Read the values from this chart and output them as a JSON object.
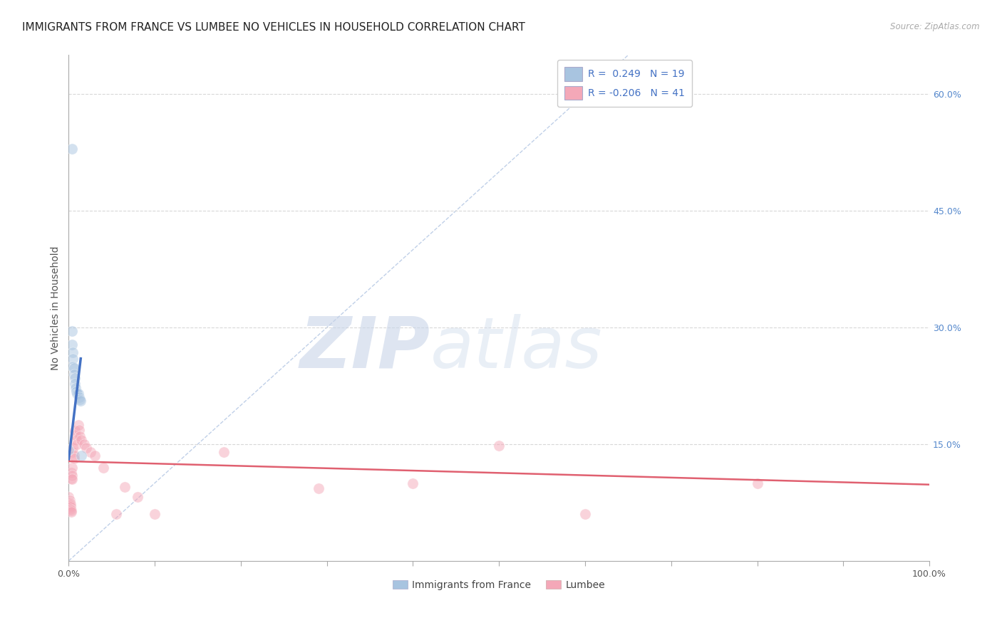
{
  "title": "IMMIGRANTS FROM FRANCE VS LUMBEE NO VEHICLES IN HOUSEHOLD CORRELATION CHART",
  "source": "Source: ZipAtlas.com",
  "ylabel": "No Vehicles in Household",
  "xlim": [
    0.0,
    1.0
  ],
  "ylim": [
    0.0,
    0.65
  ],
  "xtick_positions": [
    0.0,
    0.1,
    0.2,
    0.3,
    0.4,
    0.5,
    0.6,
    0.7,
    0.8,
    0.9,
    1.0
  ],
  "xtick_labels": [
    "0.0%",
    "",
    "",
    "",
    "",
    "",
    "",
    "",
    "",
    "",
    "100.0%"
  ],
  "ytick_positions": [
    0.15,
    0.3,
    0.45,
    0.6
  ],
  "ytick_labels": [
    "15.0%",
    "30.0%",
    "45.0%",
    "60.0%"
  ],
  "watermark_zip": "ZIP",
  "watermark_atlas": "atlas",
  "legend_entries": [
    {
      "label": "R =  0.249   N = 19",
      "color": "#a8c4e0"
    },
    {
      "label": "R = -0.206   N = 41",
      "color": "#f4a8b8"
    }
  ],
  "legend_bottom_labels": [
    "Immigrants from France",
    "Lumbee"
  ],
  "france_scatter": [
    [
      0.004,
      0.53
    ],
    [
      0.004,
      0.295
    ],
    [
      0.004,
      0.278
    ],
    [
      0.005,
      0.268
    ],
    [
      0.005,
      0.26
    ],
    [
      0.005,
      0.25
    ],
    [
      0.006,
      0.248
    ],
    [
      0.006,
      0.24
    ],
    [
      0.007,
      0.235
    ],
    [
      0.007,
      0.228
    ],
    [
      0.008,
      0.222
    ],
    [
      0.009,
      0.218
    ],
    [
      0.01,
      0.215
    ],
    [
      0.011,
      0.215
    ],
    [
      0.012,
      0.21
    ],
    [
      0.013,
      0.208
    ],
    [
      0.014,
      0.206
    ],
    [
      0.015,
      0.135
    ],
    [
      0.0,
      0.143
    ]
  ],
  "lumbee_scatter": [
    [
      0.0,
      0.082
    ],
    [
      0.001,
      0.078
    ],
    [
      0.001,
      0.075
    ],
    [
      0.002,
      0.073
    ],
    [
      0.002,
      0.071
    ],
    [
      0.002,
      0.069
    ],
    [
      0.002,
      0.067
    ],
    [
      0.003,
      0.065
    ],
    [
      0.003,
      0.063
    ],
    [
      0.003,
      0.106
    ],
    [
      0.003,
      0.113
    ],
    [
      0.004,
      0.12
    ],
    [
      0.004,
      0.11
    ],
    [
      0.004,
      0.105
    ],
    [
      0.005,
      0.145
    ],
    [
      0.005,
      0.14
    ],
    [
      0.006,
      0.135
    ],
    [
      0.006,
      0.132
    ],
    [
      0.007,
      0.167
    ],
    [
      0.008,
      0.162
    ],
    [
      0.009,
      0.155
    ],
    [
      0.01,
      0.15
    ],
    [
      0.011,
      0.175
    ],
    [
      0.012,
      0.168
    ],
    [
      0.013,
      0.16
    ],
    [
      0.015,
      0.155
    ],
    [
      0.018,
      0.15
    ],
    [
      0.02,
      0.145
    ],
    [
      0.025,
      0.14
    ],
    [
      0.03,
      0.135
    ],
    [
      0.04,
      0.12
    ],
    [
      0.055,
      0.06
    ],
    [
      0.065,
      0.095
    ],
    [
      0.08,
      0.082
    ],
    [
      0.1,
      0.06
    ],
    [
      0.18,
      0.14
    ],
    [
      0.29,
      0.093
    ],
    [
      0.4,
      0.1
    ],
    [
      0.5,
      0.148
    ],
    [
      0.6,
      0.06
    ],
    [
      0.8,
      0.1
    ]
  ],
  "france_trend_x": [
    0.0,
    0.014
  ],
  "france_trend_y": [
    0.13,
    0.26
  ],
  "lumbee_trend_x": [
    0.0,
    1.0
  ],
  "lumbee_trend_y": [
    0.128,
    0.098
  ],
  "ref_line_x": [
    0.0,
    0.65
  ],
  "ref_line_y": [
    0.0,
    0.65
  ],
  "france_color": "#a8c4e0",
  "lumbee_color": "#f4a8b8",
  "france_line_color": "#4472c4",
  "lumbee_line_color": "#e06070",
  "ref_line_color": "#c0d0e8",
  "background_color": "#ffffff",
  "grid_color": "#d8d8d8",
  "title_fontsize": 11,
  "axis_label_fontsize": 10,
  "tick_fontsize": 9,
  "legend_fontsize": 10,
  "scatter_size": 120,
  "scatter_alpha": 0.5,
  "scatter_edgewidth": 0.5
}
